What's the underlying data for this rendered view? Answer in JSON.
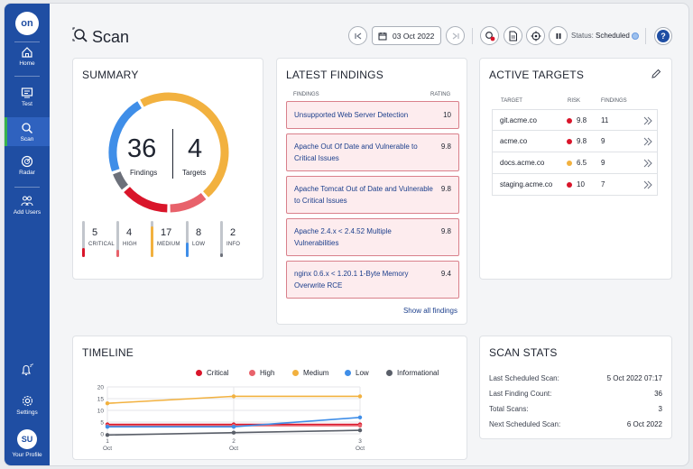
{
  "sidebar": {
    "logo": "on",
    "items": [
      {
        "label": "Home",
        "icon": "home-icon"
      },
      {
        "label": "Test",
        "icon": "test-icon"
      },
      {
        "label": "Scan",
        "icon": "scan-icon"
      },
      {
        "label": "Radar",
        "icon": "radar-icon"
      },
      {
        "label": "Add Users",
        "icon": "add-users-icon"
      }
    ],
    "settings_label": "Settings",
    "profile_initials": "SU",
    "profile_label": "Your Profile"
  },
  "header": {
    "title": "Scan",
    "date": "03 Oct 2022",
    "status_label": "Status:",
    "status_value": "Scheduled"
  },
  "summary": {
    "title": "SUMMARY",
    "findings_count": "36",
    "findings_label": "Findings",
    "targets_count": "4",
    "targets_label": "Targets",
    "severities": [
      {
        "label": "CRITICAL",
        "count": "5",
        "value": 5,
        "color": "#d9152a"
      },
      {
        "label": "HIGH",
        "count": "4",
        "value": 4,
        "color": "#e8626b"
      },
      {
        "label": "MEDIUM",
        "count": "17",
        "value": 17,
        "color": "#f2b13f"
      },
      {
        "label": "LOW",
        "count": "8",
        "value": 8,
        "color": "#3f8ee8"
      },
      {
        "label": "INFO",
        "count": "2",
        "value": 2,
        "color": "#6c707a"
      }
    ]
  },
  "findings": {
    "title": "LATEST FINDINGS",
    "col_findings": "FINDINGS",
    "col_rating": "RATING",
    "items": [
      {
        "title": "Unsupported Web Server Detection",
        "rating": "10"
      },
      {
        "title": "Apache Out Of Date and Vulnerable to Critical Issues",
        "rating": "9.8"
      },
      {
        "title": "Apache Tomcat Out of Date and Vulnerable to Critical Issues",
        "rating": "9.8"
      },
      {
        "title": "Apache 2.4.x < 2.4.52 Multiple Vulnerabilities",
        "rating": "9.8"
      },
      {
        "title": "nginx 0.6.x < 1.20.1 1-Byte Memory Overwrite RCE",
        "rating": "9.4"
      }
    ],
    "show_all": "Show all findings"
  },
  "targets": {
    "title": "ACTIVE TARGETS",
    "col_target": "TARGET",
    "col_risk": "RISK",
    "col_findings": "FINDINGS",
    "items": [
      {
        "name": "git.acme.co",
        "risk": "9.8",
        "findings": "11",
        "color": "#d9152a"
      },
      {
        "name": "acme.co",
        "risk": "9.8",
        "findings": "9",
        "color": "#d9152a"
      },
      {
        "name": "docs.acme.co",
        "risk": "6.5",
        "findings": "9",
        "color": "#f2b13f"
      },
      {
        "name": "staging.acme.co",
        "risk": "10",
        "findings": "7",
        "color": "#d9152a"
      }
    ]
  },
  "timeline": {
    "title": "TIMELINE",
    "legend": [
      {
        "name": "Critical",
        "color": "#d9152a"
      },
      {
        "name": "High",
        "color": "#e8626b"
      },
      {
        "name": "Medium",
        "color": "#f2b13f"
      },
      {
        "name": "Low",
        "color": "#3f8ee8"
      },
      {
        "name": "Informational",
        "color": "#5a5f69"
      }
    ]
  },
  "chart_data": {
    "type": "line",
    "title": "TIMELINE",
    "x": [
      "1 Oct",
      "2 Oct",
      "3 Oct"
    ],
    "ylim": [
      0,
      20
    ],
    "yticks": [
      0,
      5,
      10,
      15,
      20
    ],
    "series": [
      {
        "name": "Critical",
        "values": [
          4,
          4,
          4
        ],
        "color": "#d9152a"
      },
      {
        "name": "High",
        "values": [
          3.5,
          3.5,
          3.5
        ],
        "color": "#e8626b"
      },
      {
        "name": "Medium",
        "values": [
          13,
          16,
          16
        ],
        "color": "#f2b13f"
      },
      {
        "name": "Low",
        "values": [
          3,
          3,
          7
        ],
        "color": "#3f8ee8"
      },
      {
        "name": "Informational",
        "values": [
          -0.5,
          0.5,
          1.5
        ],
        "color": "#5a5f69"
      }
    ]
  },
  "stats": {
    "title": "SCAN STATS",
    "rows": [
      {
        "key": "Last Scheduled Scan:",
        "value": "5 Oct 2022 07:17"
      },
      {
        "key": "Last Finding Count:",
        "value": "36"
      },
      {
        "key": "Total Scans:",
        "value": "3"
      },
      {
        "key": "Next Scheduled Scan:",
        "value": "6 Oct 2022"
      }
    ]
  }
}
